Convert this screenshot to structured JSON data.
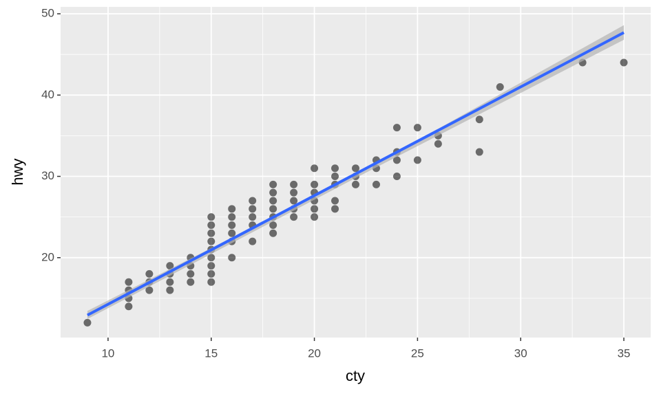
{
  "chart_data": {
    "type": "scatter",
    "x_label": "cty",
    "y_label": "hwy",
    "xlim": [
      7.7,
      36.3
    ],
    "ylim": [
      10.17,
      50.85
    ],
    "xticks": [
      10,
      15,
      20,
      25,
      30,
      35
    ],
    "yticks": [
      20,
      30,
      40,
      50
    ],
    "grid": true,
    "points": {
      "color": "#000000",
      "alpha": 0.55,
      "x": [
        9,
        11,
        11,
        11,
        11,
        12,
        12,
        12,
        13,
        13,
        13,
        13,
        14,
        14,
        14,
        14,
        15,
        15,
        15,
        15,
        15,
        15,
        15,
        15,
        15,
        16,
        16,
        16,
        16,
        16,
        16,
        17,
        17,
        17,
        17,
        17,
        18,
        18,
        18,
        18,
        18,
        18,
        18,
        19,
        19,
        19,
        19,
        19,
        20,
        20,
        20,
        20,
        20,
        20,
        21,
        21,
        21,
        21,
        21,
        22,
        22,
        22,
        23,
        23,
        23,
        24,
        24,
        24,
        24,
        25,
        25,
        26,
        26,
        28,
        28,
        29,
        33,
        35
      ],
      "y": [
        12,
        14,
        15,
        16,
        17,
        16,
        17,
        18,
        16,
        17,
        18,
        19,
        17,
        18,
        19,
        20,
        17,
        18,
        19,
        20,
        21,
        22,
        23,
        24,
        25,
        20,
        22,
        23,
        24,
        25,
        26,
        22,
        24,
        25,
        26,
        27,
        23,
        24,
        25,
        26,
        27,
        28,
        29,
        25,
        26,
        27,
        28,
        29,
        25,
        26,
        27,
        28,
        29,
        31,
        26,
        27,
        29,
        30,
        31,
        29,
        30,
        31,
        29,
        31,
        32,
        30,
        32,
        33,
        36,
        32,
        36,
        34,
        35,
        33,
        37,
        41,
        44,
        44
      ]
    },
    "fit": {
      "color": "#3366ff",
      "x": [
        9,
        35
      ],
      "y": [
        12.93,
        47.69
      ]
    },
    "band": {
      "color": "#b3b3b3",
      "x": [
        9,
        22,
        35
      ],
      "lower": [
        12.45,
        29.8,
        46.8
      ],
      "upper": [
        13.45,
        30.2,
        48.6
      ]
    }
  }
}
